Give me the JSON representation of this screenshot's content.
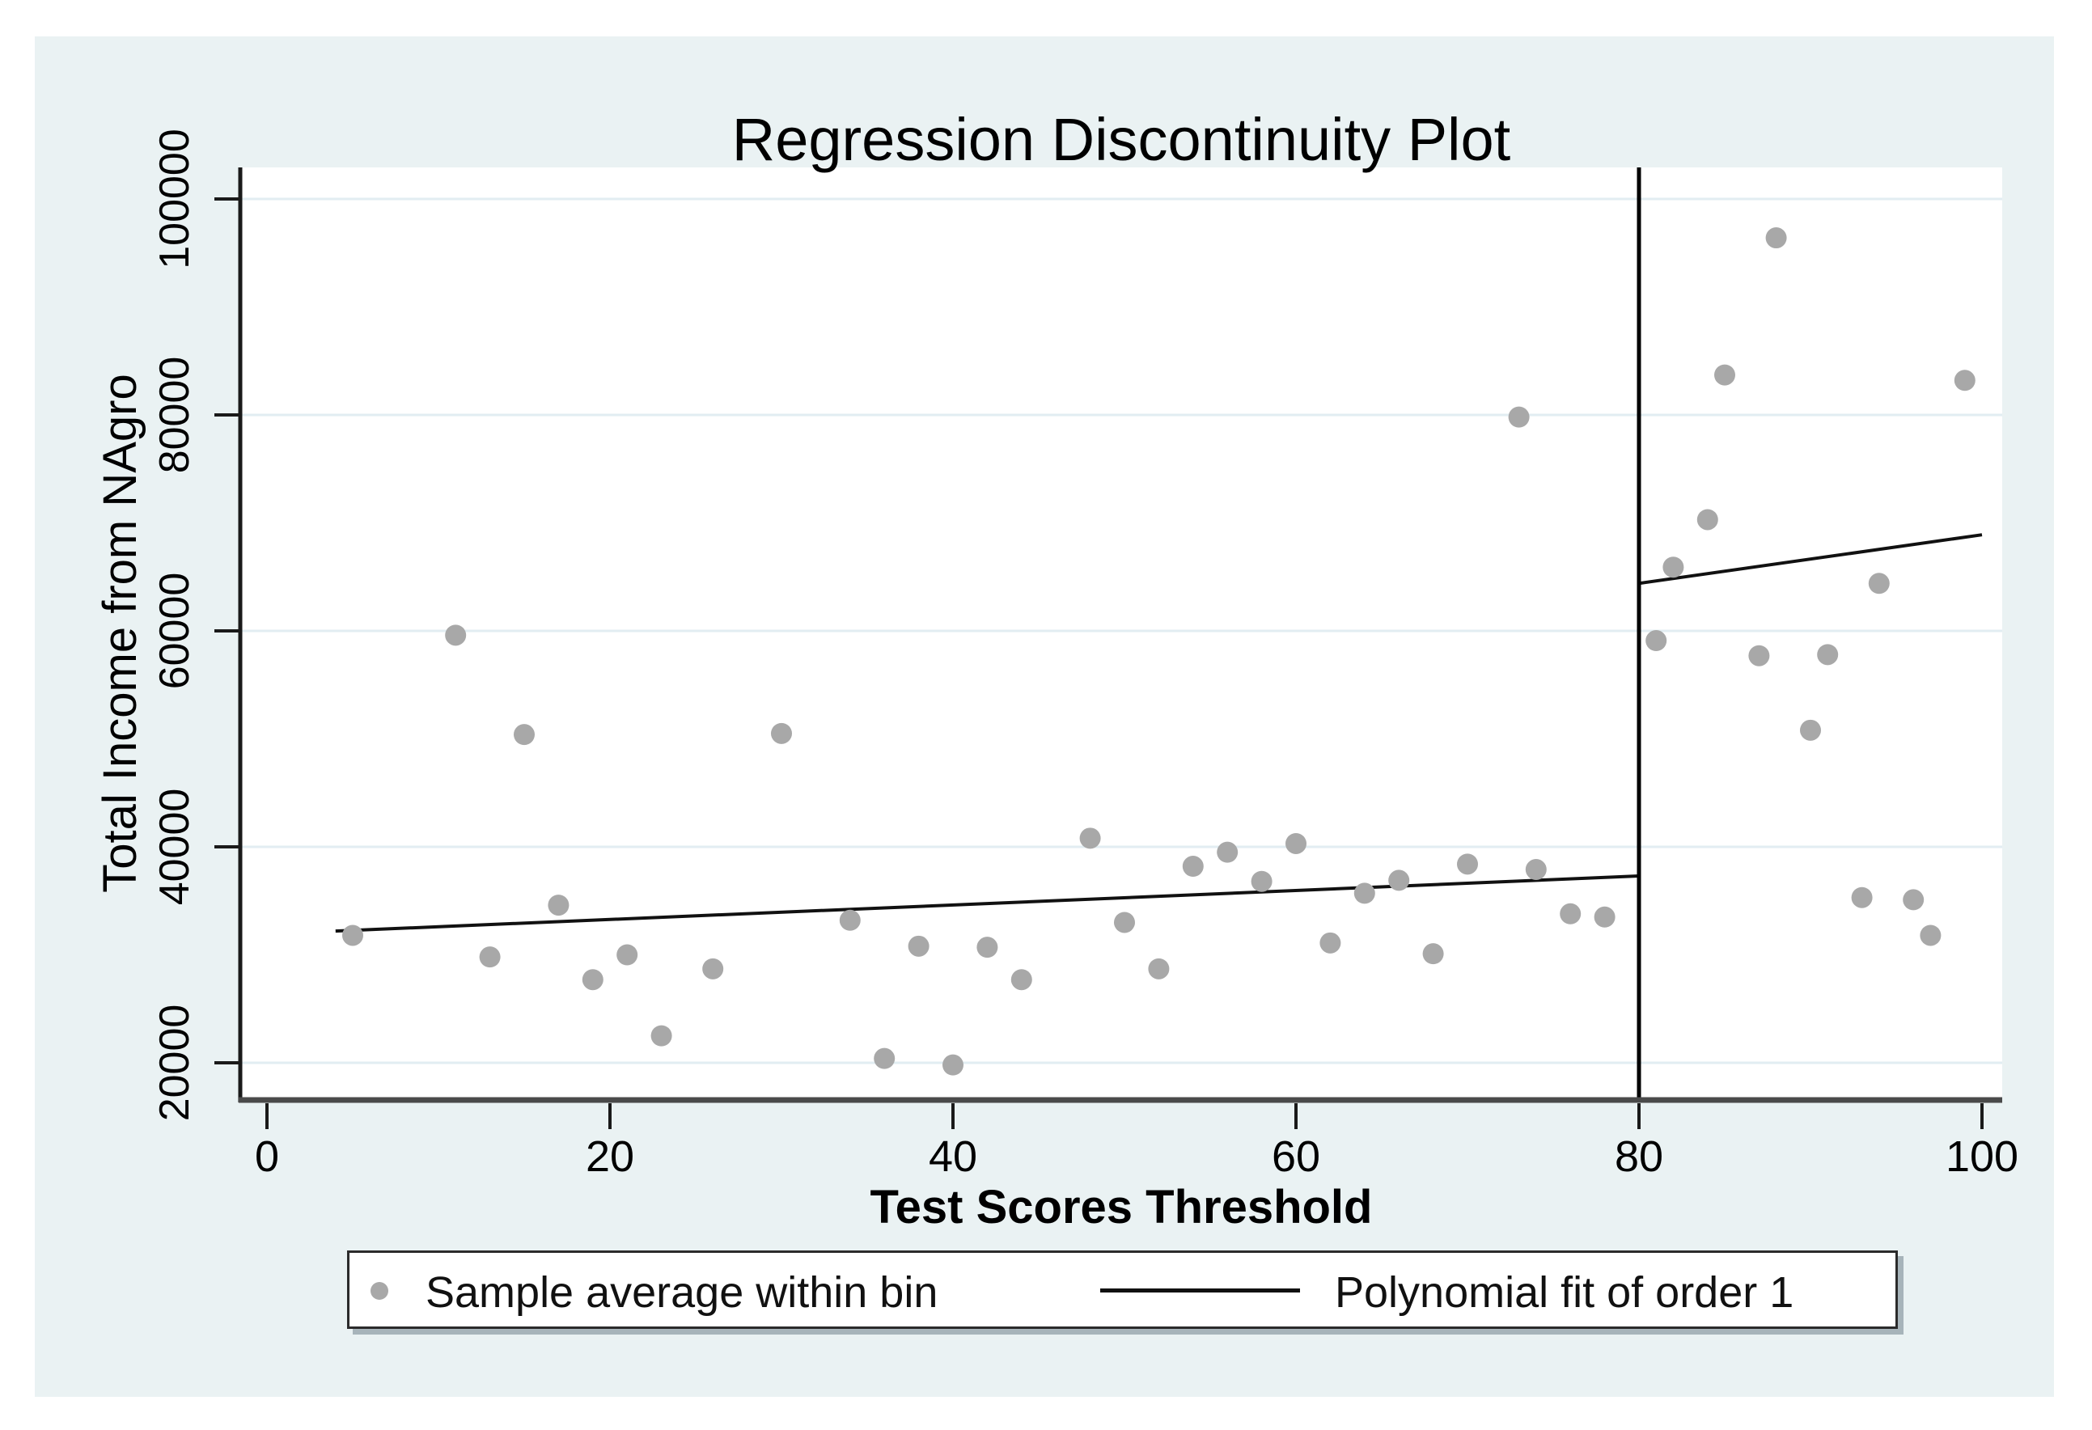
{
  "page": {
    "background": "#ffffff",
    "canvas_background": "#eaf2f3",
    "plot_background": "#ffffff"
  },
  "chart_data": {
    "type": "scatter",
    "title": "Regression Discontinuity Plot",
    "xlabel": "Test Scores Threshold",
    "ylabel": "Total Income from NAgro",
    "xlim": [
      -2,
      101
    ],
    "ylim": [
      17000,
      103000
    ],
    "x_ticks": [
      0,
      20,
      40,
      60,
      80,
      100
    ],
    "y_ticks": [
      20000,
      40000,
      60000,
      80000,
      100000
    ],
    "y_tick_labels": [
      "20000",
      "40000",
      "60000",
      "80000",
      "100000"
    ],
    "x_tick_labels": [
      "0",
      "20",
      "40",
      "60",
      "80",
      "100"
    ],
    "grid": "horizontal",
    "legend_position": "bottom",
    "cutoff_x": 80,
    "colors": {
      "marker": "#a8a8a8",
      "fit_line": "#111111",
      "cutoff_line": "#000000",
      "grid_line": "#e2edf2",
      "x_axis_line": "#4a4a4a",
      "y_axis_line": "#1a1a1a",
      "tick": "#1a1a1a",
      "text": "#000000"
    },
    "series": [
      {
        "name": "Sample average within bin",
        "type": "scatter",
        "points": [
          [
            5,
            31800
          ],
          [
            11,
            59600
          ],
          [
            13,
            29800
          ],
          [
            15,
            50400
          ],
          [
            17,
            34600
          ],
          [
            19,
            27700
          ],
          [
            21,
            30000
          ],
          [
            23,
            22500
          ],
          [
            26,
            28700
          ],
          [
            30,
            50500
          ],
          [
            34,
            33200
          ],
          [
            36,
            20400
          ],
          [
            38,
            30800
          ],
          [
            40,
            19800
          ],
          [
            42,
            30700
          ],
          [
            44,
            27700
          ],
          [
            48,
            40800
          ],
          [
            50,
            33000
          ],
          [
            52,
            28700
          ],
          [
            54,
            38200
          ],
          [
            56,
            39500
          ],
          [
            58,
            36800
          ],
          [
            60,
            40300
          ],
          [
            62,
            31100
          ],
          [
            64,
            35700
          ],
          [
            66,
            36900
          ],
          [
            68,
            30100
          ],
          [
            70,
            38400
          ],
          [
            73,
            79800
          ],
          [
            74,
            37900
          ],
          [
            76,
            33800
          ],
          [
            78,
            33500
          ],
          [
            81,
            59100
          ],
          [
            82,
            65900
          ],
          [
            84,
            70300
          ],
          [
            85,
            83700
          ],
          [
            87,
            57700
          ],
          [
            88,
            96400
          ],
          [
            90,
            50800
          ],
          [
            91,
            57800
          ],
          [
            93,
            35300
          ],
          [
            94,
            64400
          ],
          [
            96,
            35100
          ],
          [
            97,
            31800
          ],
          [
            99,
            83200
          ]
        ]
      },
      {
        "name": "Polynomial fit of order 1",
        "type": "line",
        "segments": [
          {
            "x1": 4,
            "y1": 32200,
            "x2": 80,
            "y2": 37300
          },
          {
            "x1": 80,
            "y1": 64400,
            "x2": 100,
            "y2": 68900
          }
        ]
      }
    ]
  },
  "legend": {
    "marker_label": "Sample average within bin",
    "line_label": "Polynomial fit of order 1"
  }
}
